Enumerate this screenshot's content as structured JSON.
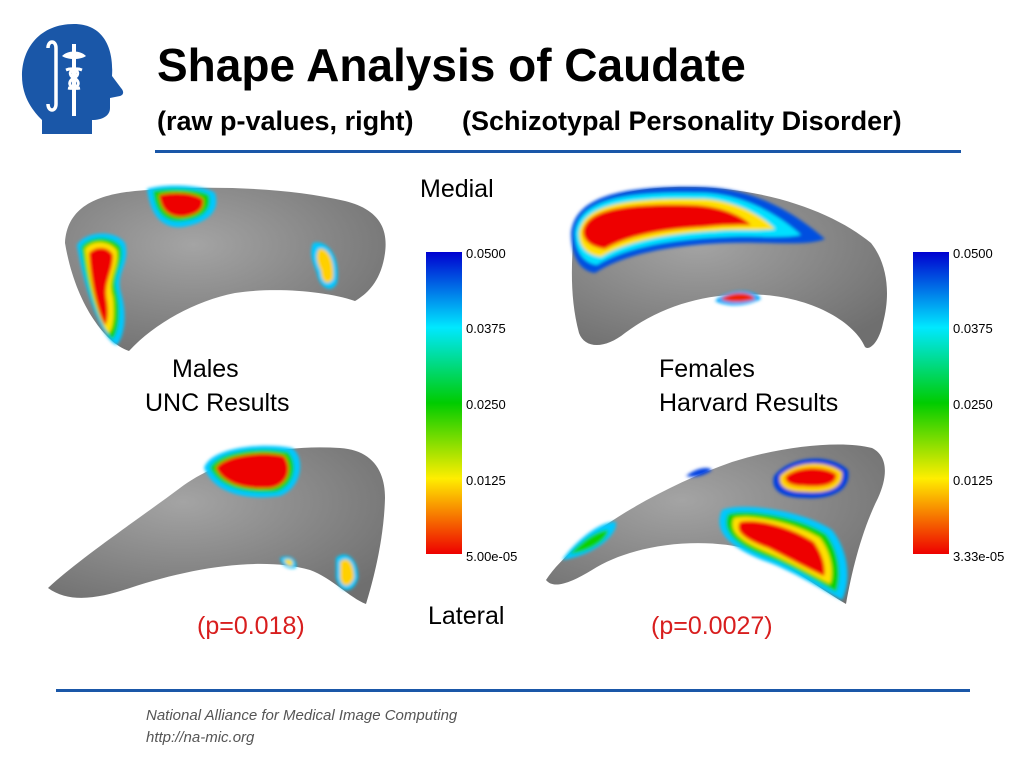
{
  "header": {
    "title": "Shape Analysis of Caudate",
    "subtitle_left": "(raw p-values, right)",
    "subtitle_right": "(Schizotypal Personality Disorder)"
  },
  "labels": {
    "medial": "Medial",
    "lateral": "Lateral",
    "males_line1": "Males",
    "males_line2": "UNC Results",
    "females_line1": "Females",
    "females_line2": "Harvard Results",
    "males_p": "(p=0.018)",
    "females_p": "(p=0.0027)"
  },
  "colorbar_left": {
    "ticks": [
      "0.0500",
      "0.0375",
      "0.0250",
      "0.0125",
      "5.00e-05"
    ]
  },
  "colorbar_right": {
    "ticks": [
      "0.0500",
      "0.0375",
      "0.0250",
      "0.0125",
      "3.33e-05"
    ]
  },
  "footer": {
    "line1": "National Alliance for Medical Image Computing",
    "line2": "http://na-mic.org"
  },
  "colors": {
    "accent_blue": "#1a57a8",
    "pvalue_red": "#d81e1e",
    "surface_gray": "#8a8a8a"
  },
  "icons": {
    "logo": "na-mic-head-logo"
  }
}
